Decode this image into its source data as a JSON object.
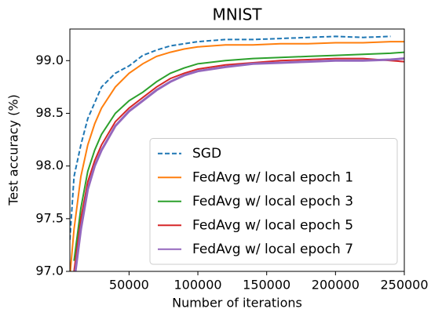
{
  "chart_data": {
    "type": "line",
    "title": "MNIST",
    "xlabel": "Number of iterations",
    "ylabel": "Test accuracy (%)",
    "x": [
      7000,
      10000,
      15000,
      20000,
      25000,
      30000,
      40000,
      50000,
      60000,
      70000,
      80000,
      90000,
      100000,
      120000,
      140000,
      160000,
      180000,
      200000,
      220000,
      240000,
      250000
    ],
    "series": [
      {
        "name": "SGD",
        "color": "#1f77b4",
        "style": "dashed",
        "values": [
          97.3,
          97.9,
          98.2,
          98.45,
          98.6,
          98.75,
          98.88,
          98.95,
          99.05,
          99.1,
          99.14,
          99.16,
          99.18,
          99.2,
          99.2,
          99.21,
          99.22,
          99.23,
          99.22,
          99.23,
          null
        ]
      },
      {
        "name": "FedAvg w/ local epoch 1",
        "color": "#ff7f0e",
        "style": "solid",
        "values": [
          96.95,
          97.4,
          97.9,
          98.2,
          98.4,
          98.55,
          98.75,
          98.88,
          98.97,
          99.04,
          99.08,
          99.11,
          99.13,
          99.15,
          99.15,
          99.16,
          99.16,
          99.17,
          99.17,
          99.18,
          99.18
        ]
      },
      {
        "name": "FedAvg w/ local epoch 3",
        "color": "#2ca02c",
        "style": "solid",
        "values": [
          null,
          97.1,
          97.6,
          97.95,
          98.15,
          98.3,
          98.5,
          98.62,
          98.7,
          98.8,
          98.88,
          98.93,
          98.97,
          99.0,
          99.02,
          99.03,
          99.04,
          99.05,
          99.06,
          99.07,
          99.08
        ]
      },
      {
        "name": "FedAvg w/ local epoch 5",
        "color": "#d62728",
        "style": "solid",
        "values": [
          null,
          97.0,
          97.5,
          97.85,
          98.05,
          98.2,
          98.42,
          98.55,
          98.65,
          98.75,
          98.83,
          98.88,
          98.92,
          98.96,
          98.98,
          99.0,
          99.01,
          99.02,
          99.02,
          99.0,
          98.99
        ]
      },
      {
        "name": "FedAvg w/ local epoch 7",
        "color": "#9467bd",
        "style": "solid",
        "values": [
          null,
          96.9,
          97.4,
          97.78,
          98.0,
          98.15,
          98.38,
          98.52,
          98.62,
          98.72,
          98.8,
          98.86,
          98.9,
          98.94,
          98.97,
          98.98,
          98.99,
          99.0,
          99.0,
          99.01,
          99.02
        ]
      }
    ],
    "xlim": [
      7000,
      250000
    ],
    "xticks": [
      50000,
      100000,
      150000,
      200000,
      250000
    ],
    "ylim": [
      97.0,
      99.3
    ],
    "yticks": [
      {
        "value": 97,
        "label": "97.0"
      },
      97.5,
      {
        "value": 98,
        "label": "98.0"
      },
      98.5,
      {
        "value": 99,
        "label": "99.0"
      }
    ],
    "grid": false,
    "legend": "lower right"
  }
}
